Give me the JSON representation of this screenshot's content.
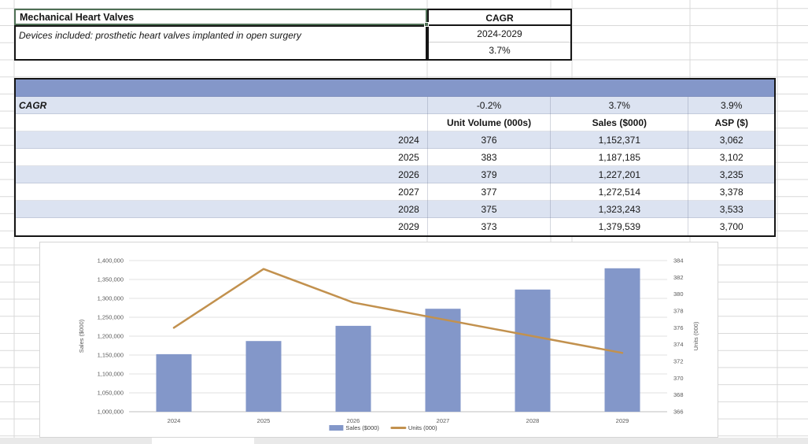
{
  "info_panel": {
    "title": "Mechanical Heart Valves",
    "subtitle": "Devices included: prosthetic heart valves implanted in open surgery",
    "cagr": {
      "label": "CAGR",
      "period": "2024-2029",
      "value": "3.7%"
    }
  },
  "forecast_table": {
    "cagr_row": {
      "label": "CAGR",
      "values": [
        "-0.2%",
        "3.7%",
        "3.9%"
      ]
    },
    "columns": [
      "Unit Volume (000s)",
      "Sales ($000)",
      "ASP ($)"
    ],
    "rows": [
      [
        "2024",
        "376",
        "1,152,371",
        "3,062"
      ],
      [
        "2025",
        "383",
        "1,187,185",
        "3,102"
      ],
      [
        "2026",
        "379",
        "1,227,201",
        "3,235"
      ],
      [
        "2027",
        "377",
        "1,272,514",
        "3,378"
      ],
      [
        "2028",
        "375",
        "1,323,243",
        "3,533"
      ],
      [
        "2029",
        "373",
        "1,379,539",
        "3,700"
      ]
    ]
  },
  "chart_data": {
    "type": "bar",
    "subtype": "combo-bar-line",
    "categories": [
      "2024",
      "2025",
      "2026",
      "2027",
      "2028",
      "2029"
    ],
    "series": [
      {
        "name": "Sales ($000)",
        "type": "bar",
        "axis": "left",
        "color": "#8397c9",
        "values": [
          1152371,
          1187185,
          1227201,
          1272514,
          1323243,
          1379539
        ]
      },
      {
        "name": "Units (000)",
        "type": "line",
        "axis": "right",
        "color": "#c2914e",
        "values": [
          376,
          383,
          379,
          377,
          375,
          373
        ]
      }
    ],
    "left_axis": {
      "title": "Sales ($000)",
      "min": 1000000,
      "max": 1400000,
      "step": 50000
    },
    "right_axis": {
      "title": "Units (000)",
      "min": 366,
      "max": 384,
      "step": 2
    },
    "legend": [
      {
        "label": "Sales ($000)",
        "swatch": "bar",
        "color": "#8397c9"
      },
      {
        "label": "Units (000)",
        "swatch": "line",
        "color": "#c2914e"
      }
    ],
    "grid": true,
    "legend_position": "bottom"
  },
  "colors": {
    "band_blue": "#8497c9",
    "stripe_blue": "#dce3f1",
    "selection_green": "#4f7055",
    "axis_text": "#595959",
    "gridline": "#d9d9d9"
  }
}
